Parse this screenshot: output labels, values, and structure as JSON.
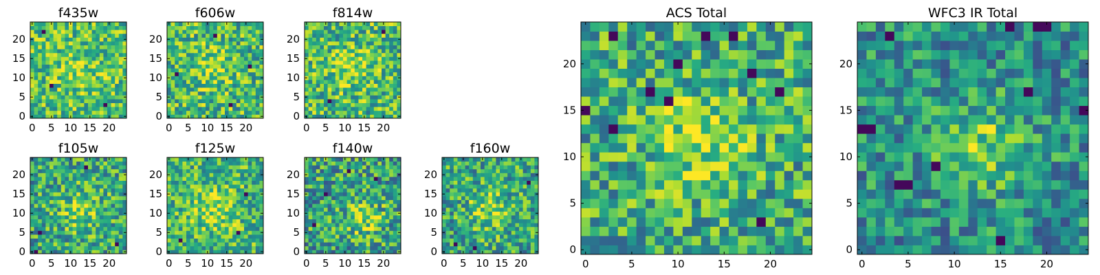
{
  "chart_data": [
    {
      "id": "f435w",
      "type": "heatmap",
      "title": "f435w",
      "xlim": [
        -0.5,
        24.5
      ],
      "ylim": [
        -0.5,
        24.5
      ],
      "xticks": [
        0,
        5,
        10,
        15,
        20
      ],
      "yticks": [
        0,
        5,
        10,
        15,
        20
      ],
      "grid_size": 25,
      "colormap": "viridis",
      "blob": {
        "cx": 12,
        "cy": 12,
        "sigma": 4,
        "amplitude": 0.12
      },
      "seed": 11,
      "base": 0.7,
      "noise": 0.28,
      "dark_pixels": [
        [
          3,
          22
        ],
        [
          19,
          3
        ],
        [
          5,
          8
        ]
      ]
    },
    {
      "id": "f606w",
      "type": "heatmap",
      "title": "f606w",
      "xlim": [
        -0.5,
        24.5
      ],
      "ylim": [
        -0.5,
        24.5
      ],
      "xticks": [
        0,
        5,
        10,
        15,
        20
      ],
      "yticks": [
        0,
        5,
        10,
        15,
        20
      ],
      "grid_size": 25,
      "colormap": "viridis",
      "blob": {
        "cx": 11,
        "cy": 13,
        "sigma": 3.5,
        "amplitude": 0.2
      },
      "seed": 23,
      "base": 0.68,
      "noise": 0.3,
      "dark_pixels": [
        [
          12,
          21
        ],
        [
          16,
          3
        ],
        [
          2,
          11
        ],
        [
          21,
          13
        ]
      ]
    },
    {
      "id": "f814w",
      "type": "heatmap",
      "title": "f814w",
      "xlim": [
        -0.5,
        24.5
      ],
      "ylim": [
        -0.5,
        24.5
      ],
      "xticks": [
        0,
        5,
        10,
        15,
        20
      ],
      "yticks": [
        0,
        5,
        10,
        15,
        20
      ],
      "grid_size": 25,
      "colormap": "viridis",
      "blob": {
        "cx": 12,
        "cy": 13,
        "sigma": 3.5,
        "amplitude": 0.2
      },
      "seed": 37,
      "base": 0.68,
      "noise": 0.3,
      "dark_pixels": [
        [
          20,
          22
        ],
        [
          6,
          4
        ]
      ]
    },
    {
      "id": "f105w",
      "type": "heatmap",
      "title": "f105w",
      "xlim": [
        -0.5,
        24.5
      ],
      "ylim": [
        -0.5,
        24.5
      ],
      "xticks": [
        0,
        5,
        10,
        15,
        20
      ],
      "yticks": [
        0,
        5,
        10,
        15,
        20
      ],
      "grid_size": 25,
      "colormap": "viridis",
      "blob": {
        "cx": 13,
        "cy": 11,
        "sigma": 4,
        "amplitude": 0.22
      },
      "seed": 41,
      "base": 0.6,
      "noise": 0.3,
      "dark_pixels": [
        [
          2,
          5
        ],
        [
          14,
          22
        ],
        [
          22,
          2
        ],
        [
          1,
          0
        ]
      ]
    },
    {
      "id": "f125w",
      "type": "heatmap",
      "title": "f125w",
      "xlim": [
        -0.5,
        24.5
      ],
      "ylim": [
        -0.5,
        24.5
      ],
      "xticks": [
        0,
        5,
        10,
        15,
        20
      ],
      "yticks": [
        0,
        5,
        10,
        15,
        20
      ],
      "grid_size": 25,
      "colormap": "viridis",
      "blob": {
        "cx": 12,
        "cy": 11,
        "sigma": 4,
        "amplitude": 0.22
      },
      "seed": 53,
      "base": 0.66,
      "noise": 0.28,
      "dark_pixels": [
        [
          3,
          3
        ],
        [
          18,
          5
        ],
        [
          20,
          15
        ]
      ]
    },
    {
      "id": "f140w",
      "type": "heatmap",
      "title": "f140w",
      "xlim": [
        -0.5,
        24.5
      ],
      "ylim": [
        -0.5,
        24.5
      ],
      "xticks": [
        0,
        5,
        10,
        15,
        20
      ],
      "yticks": [
        0,
        5,
        10,
        15,
        20
      ],
      "grid_size": 25,
      "colormap": "viridis",
      "blob": {
        "cx": 15,
        "cy": 9,
        "sigma": 3.5,
        "amplitude": 0.25
      },
      "seed": 67,
      "base": 0.58,
      "noise": 0.32,
      "dark_pixels": [
        [
          5,
          15
        ],
        [
          11,
          21
        ],
        [
          2,
          7
        ],
        [
          18,
          19
        ]
      ]
    },
    {
      "id": "f160w",
      "type": "heatmap",
      "title": "f160w",
      "xlim": [
        -0.5,
        24.5
      ],
      "ylim": [
        -0.5,
        24.5
      ],
      "xticks": [
        0,
        5,
        10,
        15,
        20
      ],
      "yticks": [
        0,
        5,
        10,
        15,
        20
      ],
      "grid_size": 25,
      "colormap": "viridis",
      "blob": {
        "cx": 12,
        "cy": 11,
        "sigma": 4,
        "amplitude": 0.22
      },
      "seed": 79,
      "base": 0.6,
      "noise": 0.3,
      "dark_pixels": [
        [
          3,
          2
        ],
        [
          8,
          1
        ],
        [
          22,
          18
        ]
      ]
    },
    {
      "id": "acs_total",
      "type": "heatmap",
      "title": "ACS Total",
      "xlim": [
        -0.5,
        24.5
      ],
      "ylim": [
        -0.5,
        24.5
      ],
      "xticks": [
        0,
        5,
        10,
        15,
        20
      ],
      "yticks": [
        0,
        5,
        10,
        15,
        20
      ],
      "grid_size": 25,
      "colormap": "viridis",
      "blob": {
        "cx": 12,
        "cy": 12,
        "sigma": 3.5,
        "amplitude": 0.25
      },
      "seed": 97,
      "base": 0.62,
      "noise": 0.3,
      "dark_pixels": [
        [
          0,
          15
        ],
        [
          3,
          23
        ],
        [
          7,
          17
        ],
        [
          9,
          16
        ],
        [
          13,
          23
        ],
        [
          16,
          23
        ],
        [
          18,
          19
        ],
        [
          19,
          3
        ],
        [
          21,
          17
        ],
        [
          10,
          20
        ],
        [
          3,
          13
        ]
      ]
    },
    {
      "id": "wfc3_ir_total",
      "type": "heatmap",
      "title": "WFC3 IR Total",
      "xlim": [
        -0.5,
        24.5
      ],
      "ylim": [
        -0.5,
        24.5
      ],
      "xticks": [
        0,
        5,
        10,
        15,
        20
      ],
      "yticks": [
        0,
        5,
        10,
        15,
        20
      ],
      "grid_size": 25,
      "colormap": "viridis",
      "blob": {
        "cx": 13,
        "cy": 11,
        "sigma": 3.5,
        "amplitude": 0.3
      },
      "seed": 131,
      "base": 0.5,
      "noise": 0.26,
      "dark_pixels": [
        [
          0,
          13
        ],
        [
          1,
          13
        ],
        [
          8,
          9
        ],
        [
          16,
          24
        ],
        [
          19,
          24
        ],
        [
          20,
          24
        ],
        [
          24,
          15
        ],
        [
          18,
          17
        ],
        [
          4,
          7
        ],
        [
          5,
          7
        ],
        [
          3,
          23
        ],
        [
          15,
          1
        ]
      ]
    }
  ]
}
